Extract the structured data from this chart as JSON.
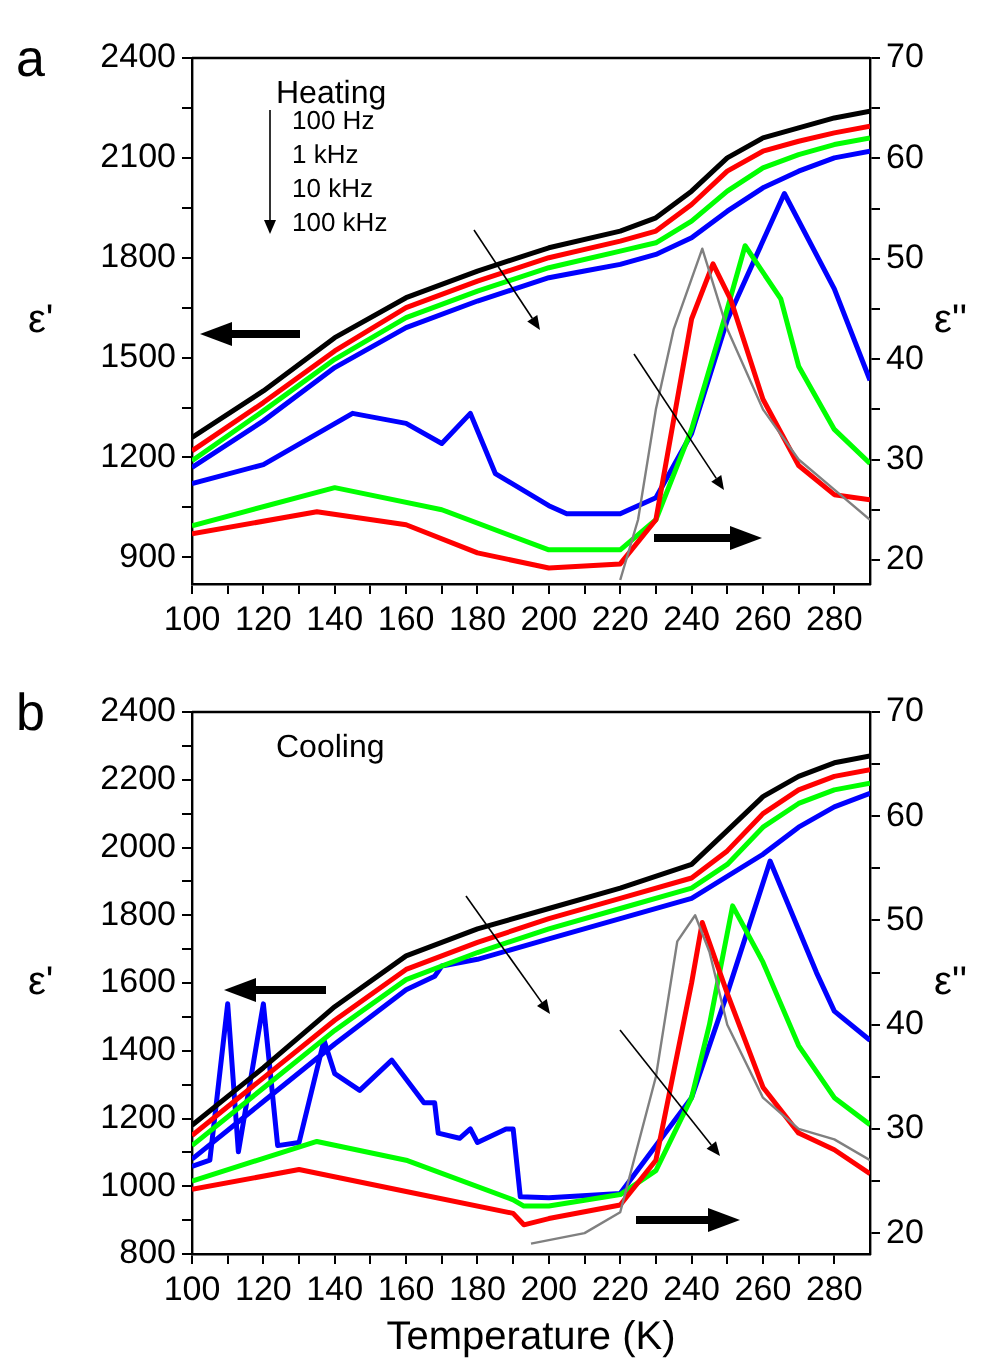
{
  "chart_data": [
    {
      "type": "line",
      "ylabel": "ε'",
      "y2label": "ε''",
      "marker": "none",
      "legend": false,
      "grid": false,
      "annotations": [
        "a",
        "Heating",
        "100 Hz",
        "1 kHz",
        "10 kHz",
        "100 kHz"
      ],
      "xlim": [
        100,
        290
      ],
      "xticks": [
        100,
        {
          "value": 110,
          "label": null
        },
        120,
        {
          "value": 130,
          "label": null
        },
        140,
        {
          "value": 150,
          "label": null
        },
        160,
        {
          "value": 170,
          "label": null
        },
        180,
        {
          "value": 190,
          "label": null
        },
        200,
        {
          "value": 210,
          "label": null
        },
        220,
        {
          "value": 230,
          "label": null
        },
        240,
        {
          "value": 250,
          "label": null
        },
        260,
        {
          "value": 270,
          "label": null
        },
        280
      ],
      "ylim": [
        820,
        2400
      ],
      "yticks": [
        900,
        {
          "value": 1050,
          "label": null
        },
        1200,
        {
          "value": 1350,
          "label": null
        },
        1500,
        {
          "value": 1650,
          "label": null
        },
        1800,
        {
          "value": 1950,
          "label": null
        },
        2100,
        {
          "value": 2250,
          "label": null
        },
        2400
      ],
      "y2lim": [
        17.6,
        70
      ],
      "y2ticks": [
        20,
        {
          "value": 25,
          "label": null
        },
        30,
        {
          "value": 35,
          "label": null
        },
        40,
        {
          "value": 45,
          "label": null
        },
        50,
        {
          "value": 55,
          "label": null
        },
        60,
        {
          "value": 65,
          "label": null
        },
        70
      ],
      "series": [
        {
          "color": "#000000",
          "x": [
            100,
            120,
            140,
            160,
            180,
            200,
            220,
            230,
            240,
            250,
            260,
            270,
            280,
            290
          ],
          "values": [
            1260,
            1400,
            1560,
            1680,
            1760,
            1830,
            1880,
            1920,
            2000,
            2100,
            2160,
            2190,
            2220,
            2240
          ]
        },
        {
          "color": "#ff0000",
          "x": [
            100,
            120,
            140,
            160,
            180,
            200,
            220,
            230,
            240,
            250,
            260,
            270,
            280,
            290
          ],
          "values": [
            1220,
            1365,
            1520,
            1650,
            1730,
            1800,
            1850,
            1880,
            1960,
            2060,
            2120,
            2150,
            2175,
            2195
          ]
        },
        {
          "color": "#00ff00",
          "x": [
            100,
            120,
            140,
            160,
            180,
            200,
            220,
            230,
            240,
            250,
            260,
            270,
            280,
            290
          ],
          "values": [
            1190,
            1340,
            1495,
            1620,
            1700,
            1770,
            1820,
            1845,
            1910,
            2000,
            2070,
            2110,
            2140,
            2160
          ]
        },
        {
          "color": "#0000ff",
          "x": [
            100,
            120,
            140,
            160,
            180,
            200,
            210,
            220,
            230,
            240,
            250,
            260,
            270,
            280,
            290
          ],
          "values": [
            1170,
            1310,
            1470,
            1590,
            1670,
            1740,
            1760,
            1780,
            1810,
            1860,
            1940,
            2010,
            2060,
            2100,
            2120
          ]
        },
        {
          "color": "#808080",
          "axis": "y2",
          "x": [
            220,
            225,
            230,
            235,
            240,
            243,
            250,
            260,
            270,
            280,
            290
          ],
          "values": [
            18,
            24,
            35,
            43,
            48,
            51,
            43,
            35,
            30,
            27,
            24
          ]
        },
        {
          "color": "#ff0000",
          "axis": "y2",
          "x": [
            100,
            135,
            160,
            180,
            200,
            220,
            230,
            240,
            246,
            251,
            260,
            270,
            280,
            290
          ],
          "values": [
            22.6,
            24.8,
            23.5,
            20.7,
            19.2,
            19.6,
            24,
            44,
            49.5,
            45.9,
            36,
            29.4,
            26.5,
            26
          ]
        },
        {
          "color": "#00ff00",
          "axis": "y2",
          "x": [
            100,
            140,
            170,
            200,
            220,
            230,
            240,
            250,
            255,
            265,
            270,
            280,
            290
          ],
          "values": [
            23.4,
            27.2,
            25,
            21,
            21,
            24,
            33,
            45,
            51.3,
            46,
            39.3,
            33,
            29.6
          ]
        },
        {
          "color": "#0000ff",
          "axis": "y2",
          "x": [
            100,
            120,
            145,
            160,
            170,
            178,
            185,
            200,
            205,
            220,
            230,
            240,
            250,
            266,
            280,
            290
          ],
          "values": [
            27.6,
            29.5,
            34.6,
            33.6,
            31.6,
            34.6,
            28.6,
            25.4,
            24.6,
            24.6,
            26.2,
            32.6,
            43.9,
            56.5,
            47,
            37.9
          ]
        }
      ]
    },
    {
      "type": "line",
      "xlabel": "Temperature (K)",
      "ylabel": "ε'",
      "y2label": "ε''",
      "marker": "none",
      "legend": false,
      "grid": false,
      "annotations": [
        "b",
        "Cooling"
      ],
      "xlim": [
        100,
        290
      ],
      "xticks": [
        100,
        {
          "value": 110,
          "label": null
        },
        120,
        {
          "value": 130,
          "label": null
        },
        140,
        {
          "value": 150,
          "label": null
        },
        160,
        {
          "value": 170,
          "label": null
        },
        180,
        {
          "value": 190,
          "label": null
        },
        200,
        {
          "value": 210,
          "label": null
        },
        220,
        {
          "value": 230,
          "label": null
        },
        240,
        {
          "value": 250,
          "label": null
        },
        260,
        {
          "value": 270,
          "label": null
        },
        280
      ],
      "ylim": [
        800,
        2400
      ],
      "yticks": [
        800,
        {
          "value": 900,
          "label": null
        },
        1000,
        {
          "value": 1100,
          "label": null
        },
        1200,
        {
          "value": 1300,
          "label": null
        },
        1400,
        {
          "value": 1500,
          "label": null
        },
        1600,
        {
          "value": 1700,
          "label": null
        },
        1800,
        {
          "value": 1900,
          "label": null
        },
        2000,
        {
          "value": 2100,
          "label": null
        },
        2200,
        {
          "value": 2300,
          "label": null
        },
        2400
      ],
      "y2lim": [
        18,
        70
      ],
      "y2ticks": [
        20,
        {
          "value": 25,
          "label": null
        },
        30,
        {
          "value": 35,
          "label": null
        },
        40,
        {
          "value": 45,
          "label": null
        },
        50,
        {
          "value": 55,
          "label": null
        },
        60,
        {
          "value": 65,
          "label": null
        },
        70
      ],
      "series": [
        {
          "color": "#000000",
          "x": [
            100,
            120,
            140,
            160,
            170,
            180,
            200,
            220,
            240,
            250,
            260,
            270,
            280,
            290
          ],
          "values": [
            1180,
            1350,
            1530,
            1680,
            1720,
            1760,
            1820,
            1880,
            1950,
            2050,
            2150,
            2210,
            2250,
            2270
          ]
        },
        {
          "color": "#ff0000",
          "x": [
            100,
            120,
            140,
            160,
            180,
            200,
            220,
            240,
            250,
            260,
            270,
            280,
            290
          ],
          "values": [
            1150,
            1320,
            1490,
            1640,
            1720,
            1790,
            1850,
            1910,
            1990,
            2100,
            2170,
            2210,
            2230
          ]
        },
        {
          "color": "#00ff00",
          "x": [
            100,
            120,
            140,
            160,
            180,
            200,
            220,
            240,
            250,
            260,
            270,
            280,
            290
          ],
          "values": [
            1120,
            1290,
            1460,
            1610,
            1690,
            1760,
            1820,
            1880,
            1950,
            2060,
            2130,
            2170,
            2190
          ]
        },
        {
          "color": "#0000ff",
          "x": [
            100,
            120,
            140,
            160,
            168,
            170,
            180,
            200,
            220,
            240,
            260,
            270,
            280,
            290
          ],
          "values": [
            1080,
            1250,
            1420,
            1580,
            1620,
            1650,
            1670,
            1730,
            1790,
            1850,
            1980,
            2060,
            2120,
            2160
          ]
        },
        {
          "color": "#808080",
          "axis": "y2",
          "x": [
            195,
            210,
            220,
            230,
            236,
            241,
            245,
            250,
            260,
            270,
            280,
            290
          ],
          "values": [
            19,
            20,
            22,
            35,
            48,
            50.5,
            47,
            40,
            33,
            30,
            29,
            27
          ]
        },
        {
          "color": "#ff0000",
          "axis": "y2",
          "x": [
            100,
            130,
            160,
            190,
            193,
            200,
            220,
            230,
            240,
            243,
            250,
            260,
            270,
            280,
            290
          ],
          "values": [
            24.2,
            26.1,
            24,
            21.9,
            20.8,
            21.4,
            22.7,
            27,
            44,
            49.8,
            43,
            34,
            29.6,
            28,
            25.7
          ]
        },
        {
          "color": "#00ff00",
          "axis": "y2",
          "x": [
            100,
            135,
            160,
            190,
            193,
            200,
            220,
            230,
            240,
            245,
            251.5,
            260,
            270,
            280,
            290
          ],
          "values": [
            25,
            28.8,
            27,
            23.2,
            22.6,
            22.6,
            23.7,
            26,
            33,
            40,
            51.4,
            46,
            38,
            33,
            30.4
          ]
        },
        {
          "color": "#0000ff",
          "axis": "y2",
          "x": [
            100,
            105,
            110,
            113,
            120,
            124,
            130,
            137,
            140,
            147,
            156,
            165,
            168,
            169,
            175,
            178,
            180,
            188,
            190,
            192,
            200,
            220,
            240,
            250,
            262,
            275,
            280,
            290
          ],
          "values": [
            26.4,
            27,
            42,
            27.8,
            42,
            28.4,
            28.7,
            38.5,
            35.3,
            33.7,
            36.6,
            32.5,
            32.5,
            29.6,
            29.1,
            30,
            28.7,
            30,
            30,
            23.5,
            23.4,
            23.8,
            33,
            43,
            55.7,
            45,
            41.3,
            38.5
          ]
        }
      ]
    }
  ]
}
